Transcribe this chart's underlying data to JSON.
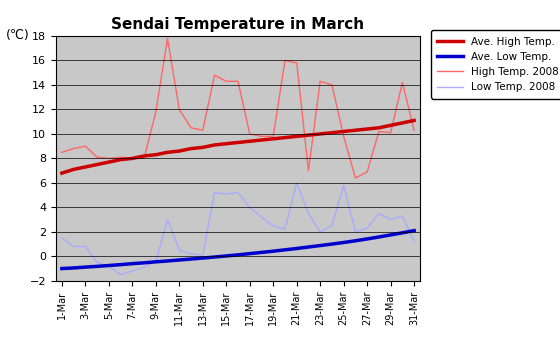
{
  "title": "Sendai Temperature in March",
  "ylabel": "(℃)",
  "ylim": [
    -2,
    18
  ],
  "yticks": [
    -2,
    0,
    2,
    4,
    6,
    8,
    10,
    12,
    14,
    16,
    18
  ],
  "days": [
    1,
    2,
    3,
    4,
    5,
    6,
    7,
    8,
    9,
    10,
    11,
    12,
    13,
    14,
    15,
    16,
    17,
    18,
    19,
    20,
    21,
    22,
    23,
    24,
    25,
    26,
    27,
    28,
    29,
    30,
    31
  ],
  "ave_high": [
    6.8,
    7.1,
    7.3,
    7.5,
    7.7,
    7.9,
    8.0,
    8.2,
    8.3,
    8.5,
    8.6,
    8.8,
    8.9,
    9.1,
    9.2,
    9.3,
    9.4,
    9.5,
    9.6,
    9.7,
    9.8,
    9.9,
    10.0,
    10.1,
    10.2,
    10.3,
    10.4,
    10.5,
    10.7,
    10.9,
    11.1
  ],
  "ave_low": [
    -1.0,
    -0.95,
    -0.88,
    -0.82,
    -0.75,
    -0.68,
    -0.6,
    -0.53,
    -0.45,
    -0.38,
    -0.3,
    -0.22,
    -0.14,
    -0.06,
    0.03,
    0.12,
    0.22,
    0.32,
    0.42,
    0.53,
    0.64,
    0.76,
    0.88,
    1.0,
    1.13,
    1.27,
    1.42,
    1.58,
    1.75,
    1.92,
    2.1
  ],
  "high_2008": [
    8.5,
    8.8,
    9.0,
    8.1,
    8.0,
    8.1,
    8.0,
    8.0,
    11.8,
    17.8,
    12.0,
    10.5,
    10.3,
    14.8,
    14.3,
    14.3,
    10.0,
    9.8,
    9.8,
    16.0,
    15.8,
    7.0,
    14.3,
    14.0,
    9.8,
    6.4,
    6.9,
    10.2,
    10.1,
    14.2,
    10.3
  ],
  "low_2008": [
    1.5,
    0.8,
    0.8,
    -0.5,
    -0.8,
    -1.5,
    -1.2,
    -0.9,
    -0.4,
    3.0,
    0.5,
    0.2,
    0.1,
    5.2,
    5.1,
    5.2,
    4.0,
    3.2,
    2.5,
    2.2,
    6.0,
    3.5,
    2.0,
    2.5,
    5.8,
    2.0,
    2.3,
    3.5,
    3.0,
    3.3,
    1.2
  ],
  "ave_high_color": "#cc0000",
  "ave_low_color": "#0000cc",
  "high_2008_color": "#ff6666",
  "low_2008_color": "#aaaaff",
  "bg_color": "#c8c8c8",
  "legend_labels": [
    "Ave. High Temp.",
    "Ave. Low Temp.",
    "High Temp. 2008",
    "Low Temp. 2008"
  ]
}
